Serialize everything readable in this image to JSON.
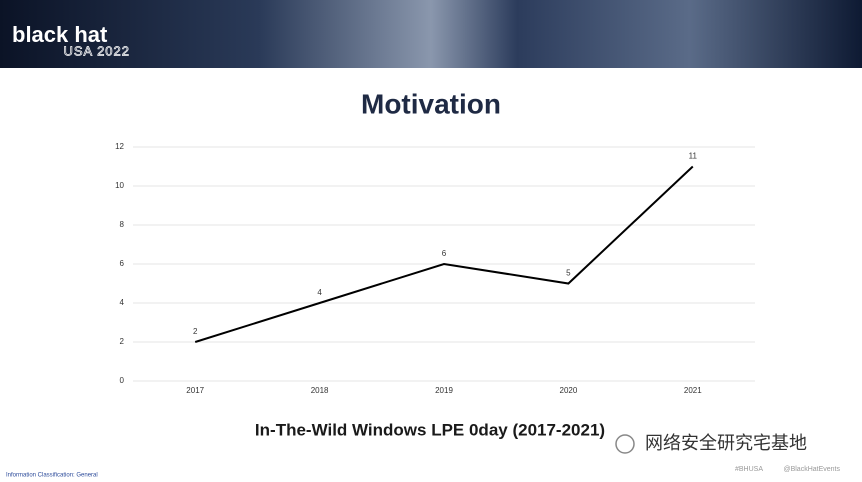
{
  "header": {
    "brand": "black hat",
    "edition": "USA 2022"
  },
  "slide_title": "Motivation",
  "chart_data": {
    "type": "line",
    "title": "In-The-Wild Windows LPE 0day (2017-2021)",
    "categories": [
      "2017",
      "2018",
      "2019",
      "2020",
      "2021"
    ],
    "values": [
      2,
      4,
      6,
      5,
      11
    ],
    "color": "#000000",
    "ylim": [
      0,
      12
    ],
    "yticks": [
      0,
      2,
      4,
      6,
      8,
      10,
      12
    ],
    "grid": true,
    "data_labels": true
  },
  "footer": {
    "classification": "Information Classification: General",
    "hashtag": "#BHUSA",
    "handle": "@BlackHatEvents",
    "watermark": "网络安全研究宅基地"
  }
}
